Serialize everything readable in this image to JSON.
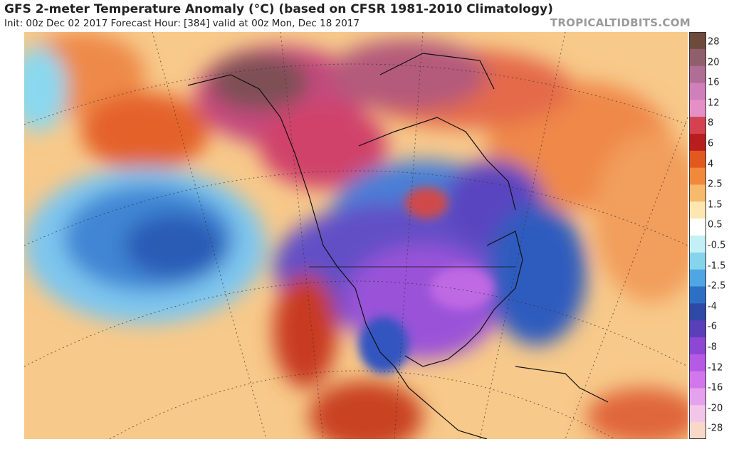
{
  "header": {
    "title": "GFS 2-meter Temperature Anomaly (°C) (based on CFSR 1981-2010 Climatology)",
    "subtitle": "Init: 00z Dec 02 2017   Forecast Hour: [384]   valid at 00z Mon, Dec 18 2017",
    "credit": "TROPICALTIDBITS.COM"
  },
  "colorbar": {
    "labels": [
      "28",
      "20",
      "16",
      "12",
      "8",
      "6",
      "4",
      "2.5",
      "1.5",
      "0.5",
      "-0.5",
      "-1.5",
      "-2.5",
      "-4",
      "-6",
      "-8",
      "-12",
      "-16",
      "-20",
      "-28"
    ],
    "colors": [
      "#6e4a3c",
      "#8f5f6b",
      "#b06d96",
      "#cf7fb9",
      "#e58fc7",
      "#d4424f",
      "#b81e1e",
      "#e3581f",
      "#f08a3a",
      "#f7b96b",
      "#fde6b0",
      "#ffffff",
      "#c2f0f5",
      "#86d4ec",
      "#4fa6e3",
      "#2e6fc6",
      "#2e4aa6",
      "#5a3fb8",
      "#8d47d2",
      "#b45ae4",
      "#d276ec",
      "#e6a1ee",
      "#f2c6e9",
      "#f8d9c8"
    ]
  },
  "map": {
    "region": "North America",
    "features": [
      "coastlines",
      "country-borders",
      "state-borders",
      "lat-lon-grid"
    ]
  }
}
